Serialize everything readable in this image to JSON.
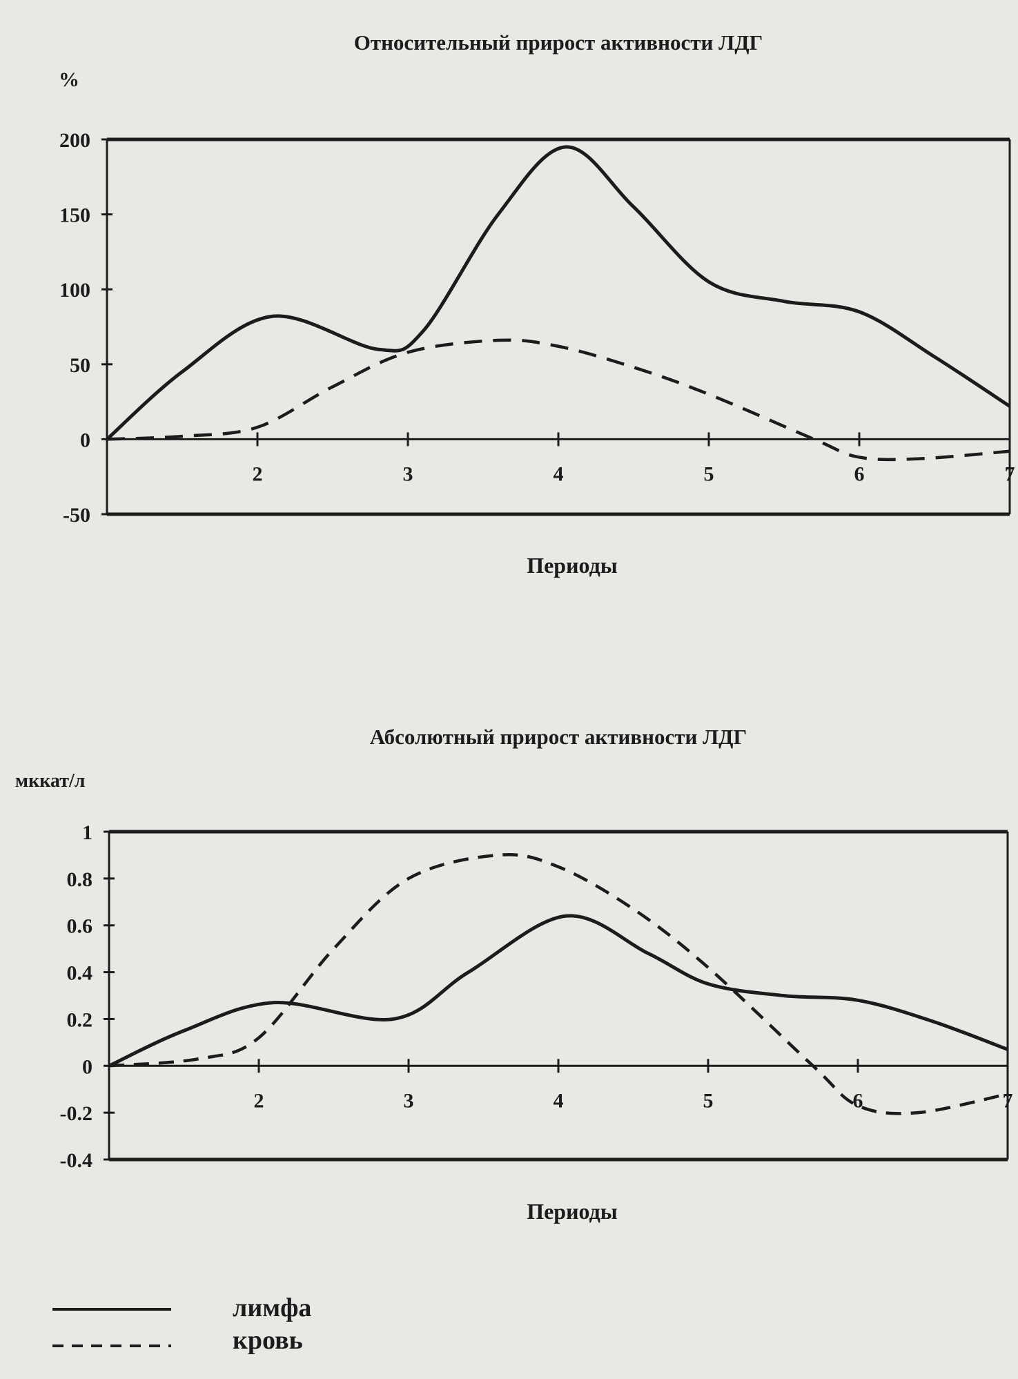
{
  "chart_data": [
    {
      "type": "line",
      "title": "Относительный прирост активности ЛДГ",
      "ylabel": "%",
      "xlabel": "Периоды",
      "xlim": [
        1,
        7
      ],
      "ylim": [
        -50,
        200
      ],
      "yticks": [
        200,
        150,
        100,
        50,
        0,
        -50
      ],
      "xticks": [
        2,
        3,
        4,
        5,
        6,
        7
      ],
      "grid": false,
      "series": [
        {
          "name": "лимфа",
          "style": "solid",
          "points": [
            [
              1,
              0
            ],
            [
              1.5,
              45
            ],
            [
              2.1,
              82
            ],
            [
              2.8,
              60
            ],
            [
              3.1,
              72
            ],
            [
              3.6,
              150
            ],
            [
              4.05,
              195
            ],
            [
              4.5,
              155
            ],
            [
              5,
              105
            ],
            [
              5.5,
              92
            ],
            [
              6,
              85
            ],
            [
              6.5,
              55
            ],
            [
              7,
              22
            ]
          ]
        },
        {
          "name": "кровь",
          "style": "dashed",
          "points": [
            [
              1,
              0
            ],
            [
              1.5,
              2
            ],
            [
              2,
              8
            ],
            [
              2.5,
              35
            ],
            [
              3,
              58
            ],
            [
              3.6,
              66
            ],
            [
              4,
              62
            ],
            [
              4.5,
              48
            ],
            [
              5,
              30
            ],
            [
              5.7,
              0
            ],
            [
              6,
              -12
            ],
            [
              6.4,
              -13
            ],
            [
              7,
              -8
            ]
          ]
        }
      ]
    },
    {
      "type": "line",
      "title": "Абсолютный прирост активности ЛДГ",
      "ylabel": "мккат/л",
      "xlabel": "Периоды",
      "xlim": [
        1,
        7
      ],
      "ylim": [
        -0.4,
        1
      ],
      "yticks": [
        1,
        0.8,
        0.6,
        0.4,
        0.2,
        0,
        -0.2,
        -0.4
      ],
      "xticks": [
        2,
        3,
        4,
        5,
        6,
        7
      ],
      "grid": false,
      "series": [
        {
          "name": "лимфа",
          "style": "solid",
          "points": [
            [
              1,
              0
            ],
            [
              1.5,
              0.15
            ],
            [
              2.1,
              0.27
            ],
            [
              2.9,
              0.2
            ],
            [
              3.4,
              0.4
            ],
            [
              4.05,
              0.64
            ],
            [
              4.6,
              0.48
            ],
            [
              5,
              0.35
            ],
            [
              5.5,
              0.3
            ],
            [
              6,
              0.28
            ],
            [
              6.5,
              0.19
            ],
            [
              7,
              0.07
            ]
          ]
        },
        {
          "name": "кровь",
          "style": "dashed",
          "points": [
            [
              1,
              0
            ],
            [
              1.6,
              0.03
            ],
            [
              2,
              0.12
            ],
            [
              2.5,
              0.5
            ],
            [
              3,
              0.8
            ],
            [
              3.6,
              0.9
            ],
            [
              4,
              0.85
            ],
            [
              4.5,
              0.67
            ],
            [
              5,
              0.42
            ],
            [
              5.7,
              0
            ],
            [
              6,
              -0.17
            ],
            [
              6.4,
              -0.2
            ],
            [
              7,
              -0.12
            ]
          ]
        }
      ]
    }
  ],
  "legend": [
    {
      "label": "лимфа",
      "style": "solid"
    },
    {
      "label": "кровь",
      "style": "dashed"
    }
  ],
  "colors": {
    "ink": "#1c1c1c",
    "paper": "#e9e8e4"
  }
}
